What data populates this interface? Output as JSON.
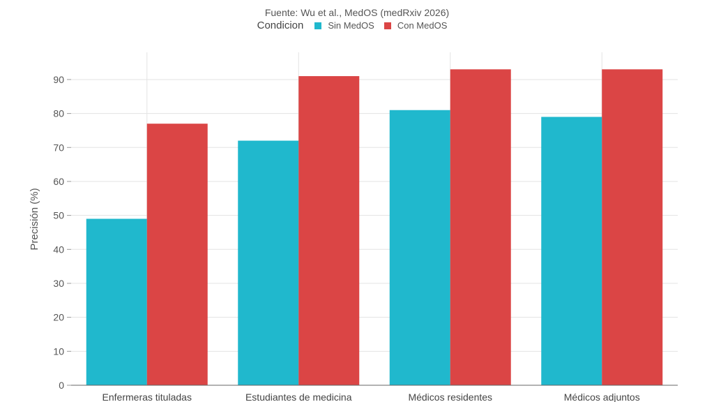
{
  "chart_data": {
    "type": "bar",
    "subtitle": "Fuente: Wu et al., MedOS (medRxiv 2026)",
    "legend_title": "Condicion",
    "categories": [
      "Enfermeras tituladas",
      "Estudiantes de medicina",
      "Médicos residentes",
      "Médicos adjuntos"
    ],
    "series": [
      {
        "name": "Sin MedOS",
        "color": "#20B8CD",
        "values": [
          49,
          72,
          81,
          79
        ]
      },
      {
        "name": "Con MedOS",
        "color": "#DB4545",
        "values": [
          77,
          91,
          93,
          93
        ]
      }
    ],
    "ylabel": "Precisión (%)",
    "xlabel": "",
    "ylim": [
      0,
      98
    ],
    "yticks": [
      0,
      10,
      20,
      30,
      40,
      50,
      60,
      70,
      80,
      90
    ],
    "grid": true,
    "legend_position": "top-center"
  }
}
